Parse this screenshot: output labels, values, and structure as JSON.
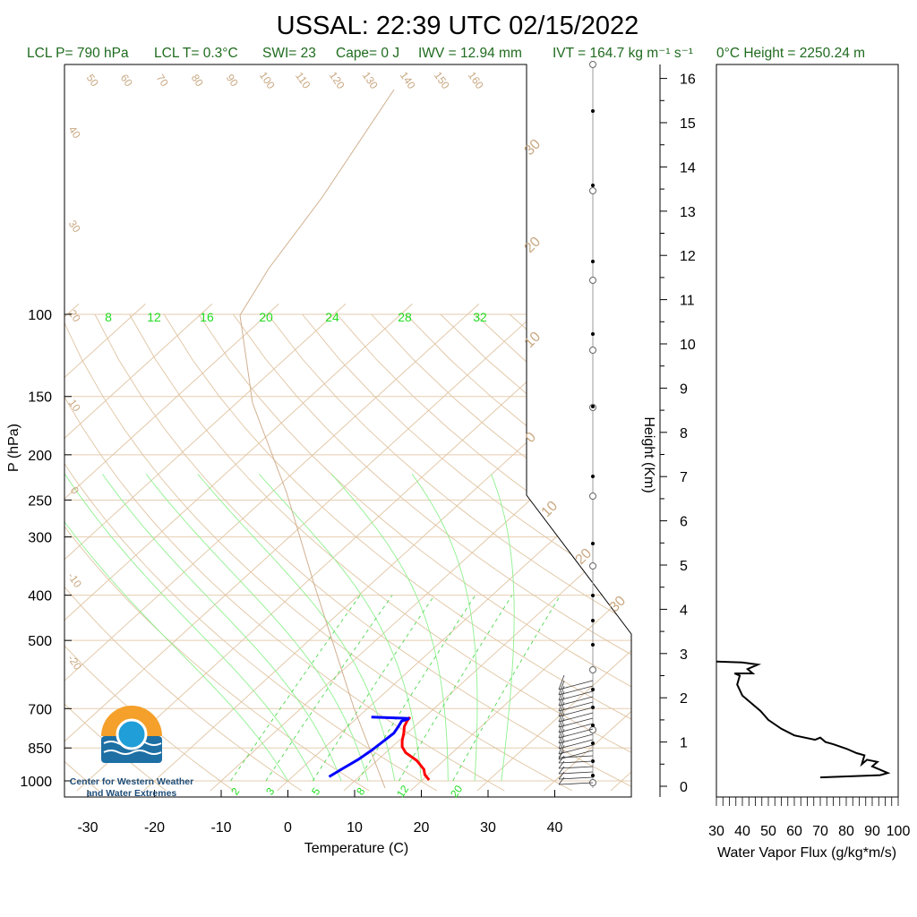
{
  "chart_data": {
    "type": "skew-t",
    "title": "USSAL: 22:39 UTC 02/15/2022",
    "info_line": {
      "lcl_p": "LCL P= 790 hPa",
      "lcl_t": "LCL T= 0.3°C",
      "swi": "SWI= 23",
      "cape": "Cape= 0 J",
      "iwv": "IWV = 12.94 mm",
      "ivt": "IVT = 164.7 kg m⁻¹ s⁻¹",
      "zero_height": "0°C Height = 2250.24 m"
    },
    "ylabel": "P (hPa)",
    "xlabel": "Temperature (C)",
    "pressure_ticks": [
      "100",
      "150",
      "200",
      "250",
      "300",
      "400",
      "500",
      "700",
      "850",
      "1000"
    ],
    "temp_ticks": [
      "-30",
      "-20",
      "-10",
      "0",
      "10",
      "20",
      "30",
      "40"
    ],
    "height_axis": {
      "label": "Height (Km)",
      "ticks": [
        "0",
        "1",
        "2",
        "3",
        "4",
        "5",
        "6",
        "7",
        "8",
        "9",
        "10",
        "11",
        "12",
        "13",
        "14",
        "15",
        "16"
      ]
    },
    "dry_adiabat_labels": [
      "50",
      "60",
      "70",
      "80",
      "90",
      "100",
      "110",
      "120",
      "130",
      "140",
      "150",
      "160"
    ],
    "isotherm_labels_left": [
      "40",
      "30",
      "20",
      "10",
      "0",
      "-10",
      "-20"
    ],
    "isotherm_labels_right": [
      "30",
      "20",
      "10",
      "0",
      "10",
      "20",
      "30"
    ],
    "mixing_ratio_labels": [
      "2",
      "3",
      "5",
      "8",
      "12",
      "20"
    ],
    "moist_adiabat_labels": [
      "8",
      "12",
      "16",
      "20",
      "24",
      "28",
      "32"
    ],
    "temperature_profile": {
      "color": "#ff0000",
      "points": [
        [
          21.0,
          995
        ],
        [
          19.5,
          970
        ],
        [
          18.5,
          945
        ],
        [
          16.0,
          905
        ],
        [
          13.0,
          870
        ],
        [
          11.5,
          845
        ],
        [
          10.5,
          820
        ],
        [
          9.5,
          790
        ],
        [
          8.5,
          765
        ],
        [
          8.0,
          745
        ],
        [
          7.8,
          730
        ]
      ]
    },
    "dewpoint_profile": {
      "color": "#0000ff",
      "points": [
        [
          5.5,
          980
        ],
        [
          6.2,
          940
        ],
        [
          7.0,
          900
        ],
        [
          7.5,
          860
        ],
        [
          7.8,
          820
        ],
        [
          8.0,
          790
        ],
        [
          7.6,
          765
        ],
        [
          7.2,
          745
        ],
        [
          7.9,
          735
        ],
        [
          2.0,
          730
        ]
      ]
    },
    "flux_panel": {
      "xlabel": "Water Vapor Flux (g/kg*m/s)",
      "xticks": [
        "30",
        "40",
        "50",
        "60",
        "70",
        "80",
        "90",
        "100"
      ],
      "xlim": [
        30,
        100
      ],
      "ylim_km": [
        0,
        16.5
      ],
      "profile": [
        [
          70,
          0.2
        ],
        [
          93,
          0.25
        ],
        [
          96,
          0.3
        ],
        [
          90,
          0.45
        ],
        [
          92,
          0.55
        ],
        [
          88,
          0.6
        ],
        [
          86,
          0.5
        ],
        [
          87,
          0.7
        ],
        [
          84,
          0.75
        ],
        [
          80,
          0.85
        ],
        [
          75,
          0.95
        ],
        [
          72,
          1.0
        ],
        [
          70,
          1.1
        ],
        [
          68,
          1.05
        ],
        [
          60,
          1.15
        ],
        [
          55,
          1.3
        ],
        [
          50,
          1.5
        ],
        [
          47,
          1.7
        ],
        [
          43,
          1.9
        ],
        [
          40,
          2.05
        ],
        [
          38,
          2.3
        ],
        [
          39,
          2.5
        ],
        [
          37,
          2.55
        ],
        [
          44,
          2.55
        ],
        [
          42,
          2.65
        ],
        [
          46,
          2.75
        ],
        [
          40,
          2.8
        ],
        [
          30,
          2.82
        ]
      ]
    },
    "logo": {
      "line1": "Center for Western Weather",
      "line2": "and Water Extremes"
    }
  }
}
